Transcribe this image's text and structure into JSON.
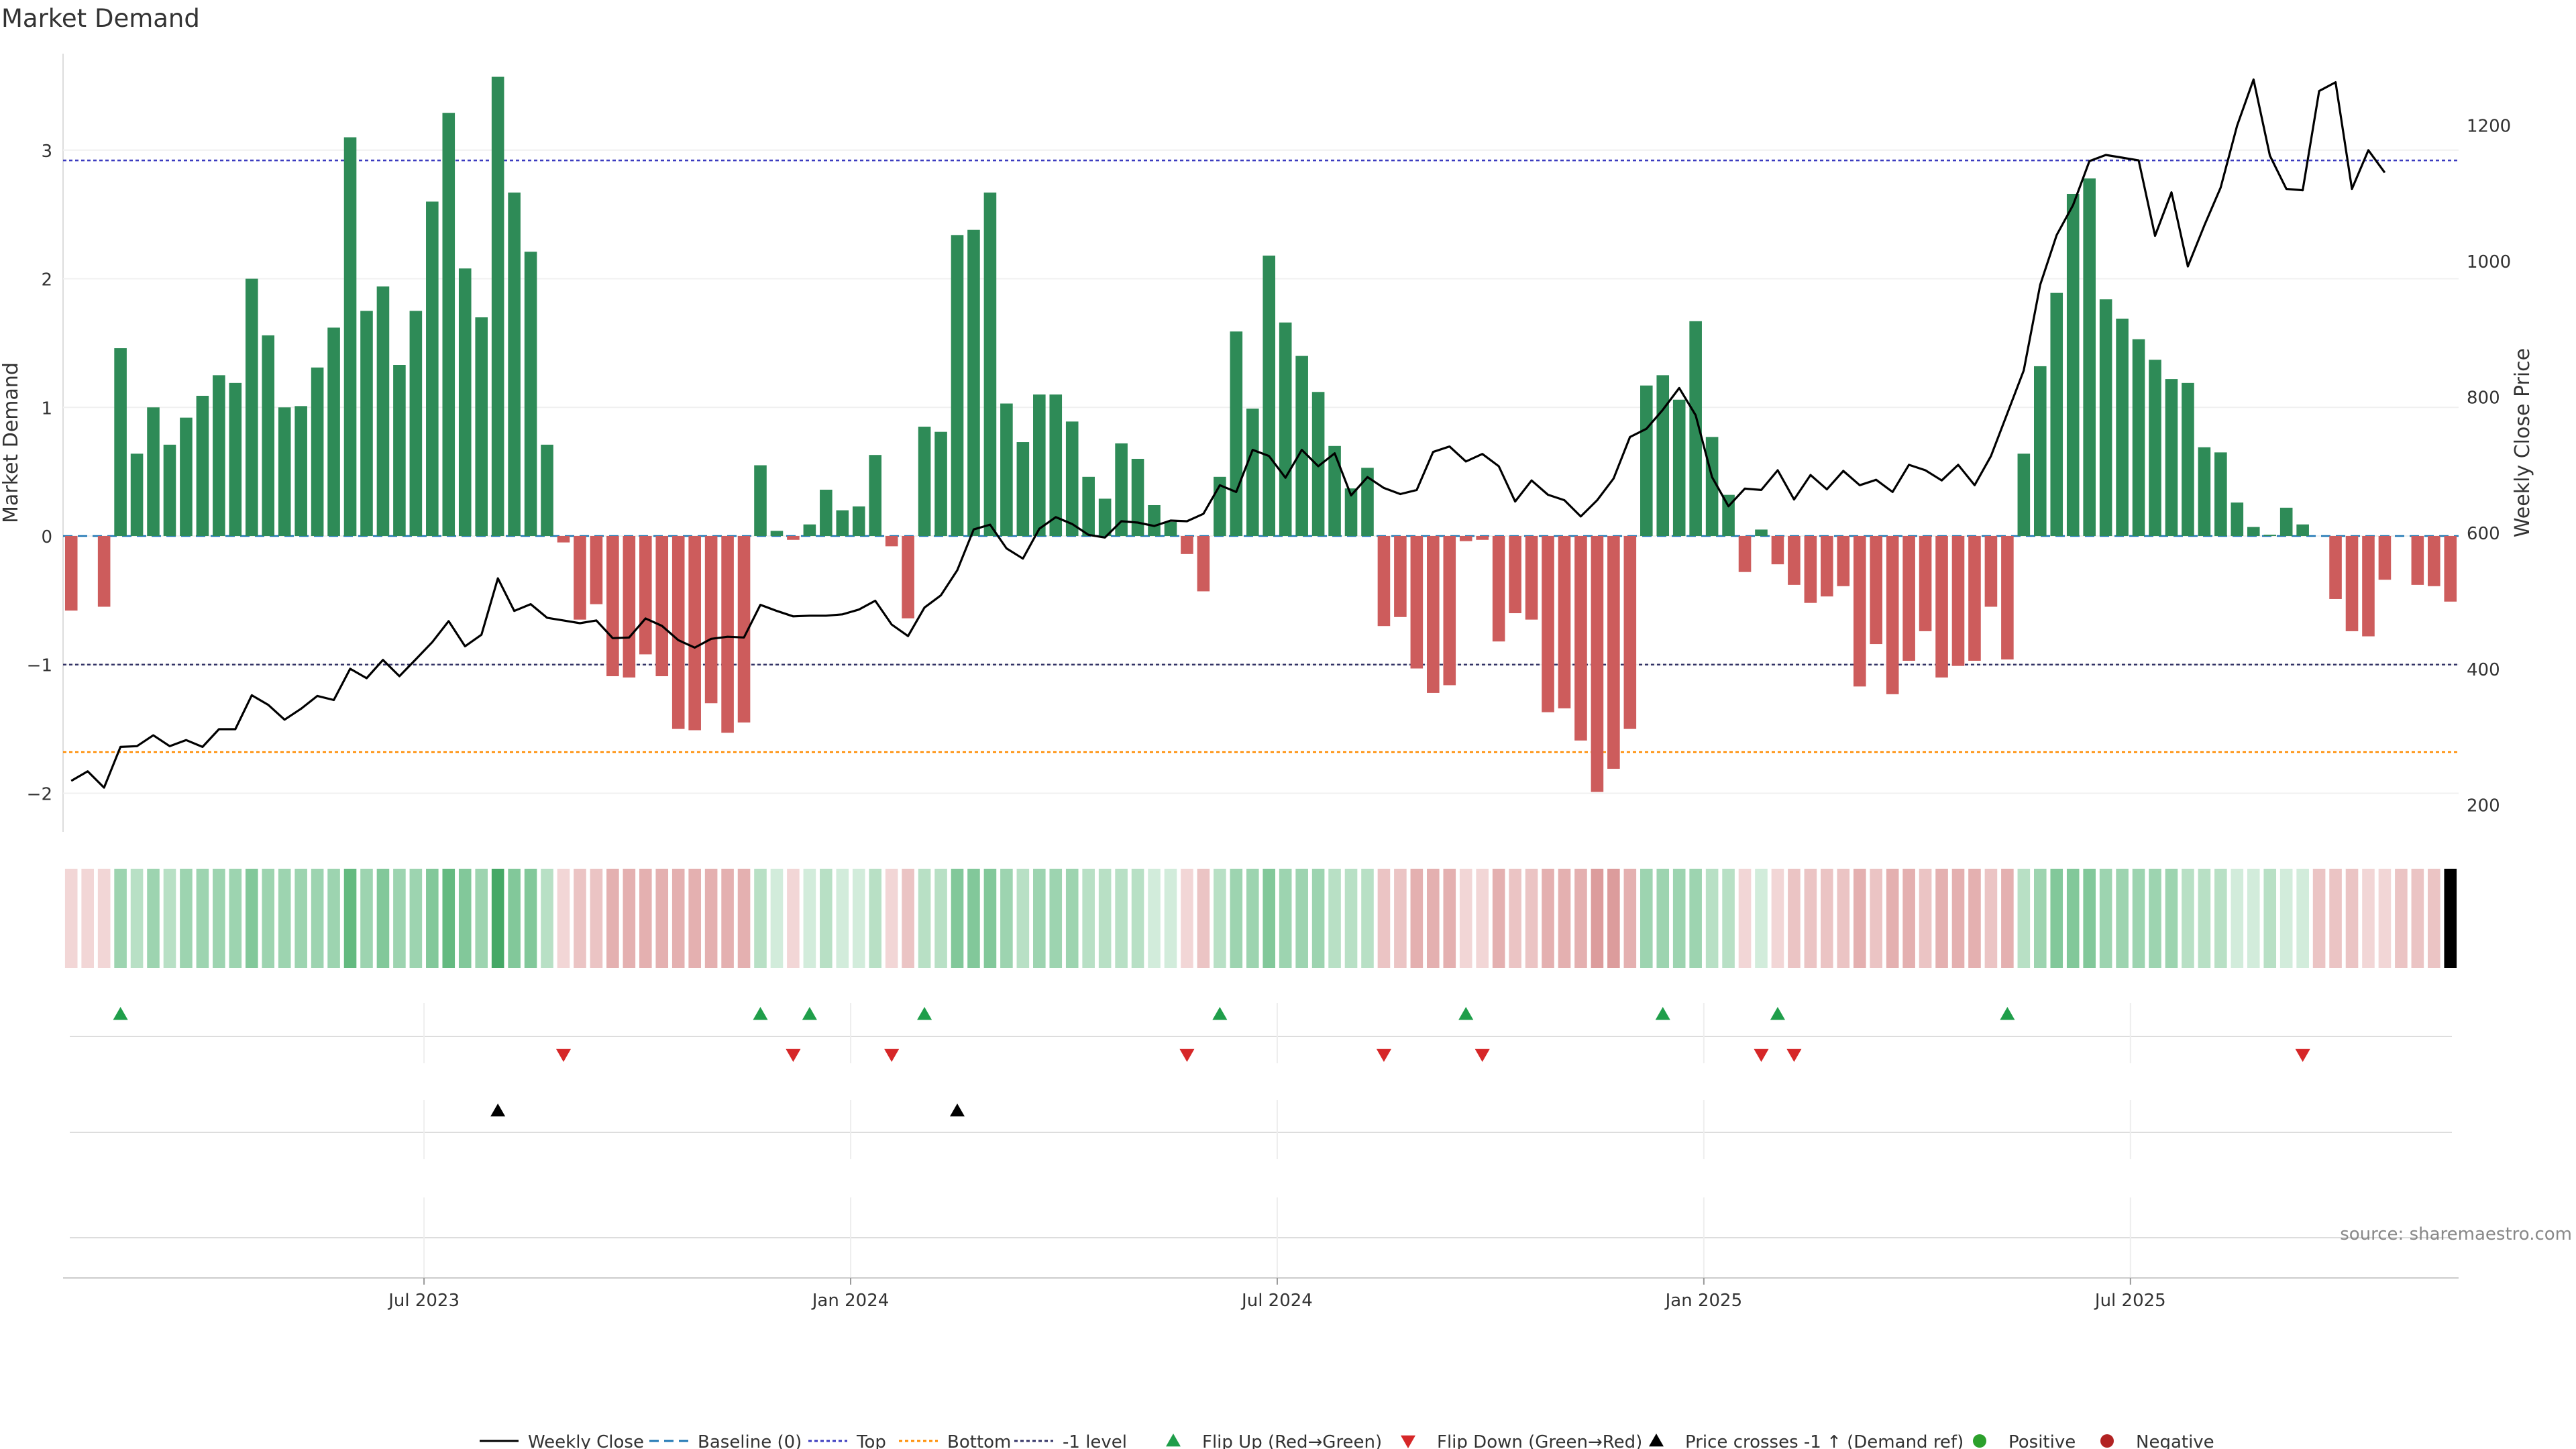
{
  "colors": {
    "positive_bar": "#2e8b57",
    "negative_bar": "#cd5c5c",
    "price_line": "#000000",
    "baseline": "#1f77b4",
    "top_line": "#3b3bbf",
    "bottom_line": "#ff8c00",
    "minus1_line": "#333366",
    "flip_up": "#1f9e4a",
    "flip_down": "#d62728",
    "price_cross": "#000000",
    "positive_dot": "#2ca02c",
    "negative_dot": "#b22222"
  },
  "chart_data": {
    "type": "bar",
    "title": "Market Demand",
    "ylabel": "Market Demand",
    "y2label": "Weekly Close Price",
    "ylim": [
      -2.3,
      3.75
    ],
    "y2lim": [
      160,
      1305
    ],
    "yticks": [
      "3",
      "2",
      "1",
      "0",
      "−1",
      "−2"
    ],
    "yticks_values": [
      3,
      2,
      1,
      0,
      -1,
      -2
    ],
    "y2ticks": [
      "1200",
      "1000",
      "800",
      "600",
      "400",
      "200"
    ],
    "y2ticks_values": [
      1200,
      1000,
      800,
      600,
      400,
      200
    ],
    "xticks": [
      "Jul 2023",
      "Jan 2024",
      "Jul 2024",
      "Jan 2025",
      "Jul 2025"
    ],
    "xticks_week_index": [
      22,
      48,
      74,
      100,
      126
    ],
    "levels": {
      "top": 2.92,
      "bottom": -1.68,
      "minus1": -1.0,
      "baseline": 0
    },
    "demand": [
      -0.58,
      0,
      -0.55,
      1.46,
      0.64,
      1.0,
      0.71,
      0.92,
      1.09,
      1.25,
      1.19,
      2.0,
      1.56,
      1.0,
      1.01,
      1.31,
      1.62,
      3.1,
      1.75,
      1.94,
      1.33,
      1.75,
      2.6,
      3.29,
      2.08,
      1.7,
      3.57,
      2.67,
      2.21,
      0.71,
      -0.05,
      -0.65,
      -0.53,
      -1.09,
      -1.1,
      -0.92,
      -1.09,
      -1.5,
      -1.51,
      -1.3,
      -1.53,
      -1.45,
      0.55,
      0.04,
      -0.03,
      0.09,
      0.36,
      0.2,
      0.23,
      0.63,
      -0.08,
      -0.64,
      0.85,
      0.81,
      2.34,
      2.38,
      2.67,
      1.03,
      0.73,
      1.1,
      1.1,
      0.89,
      0.46,
      0.29,
      0.72,
      0.6,
      0.24,
      0.11,
      -0.14,
      -0.43,
      0.46,
      1.59,
      0.99,
      2.18,
      1.66,
      1.4,
      1.12,
      0.7,
      0.37,
      0.53,
      -0.7,
      -0.63,
      -1.03,
      -1.22,
      -1.16,
      -0.04,
      -0.03,
      -0.82,
      -0.6,
      -0.65,
      -1.37,
      -1.34,
      -1.59,
      -1.99,
      -1.81,
      -1.5,
      1.17,
      1.25,
      1.06,
      1.67,
      0.77,
      0.32,
      -0.28,
      0.05,
      -0.22,
      -0.38,
      -0.52,
      -0.47,
      -0.39,
      -1.17,
      -0.84,
      -1.23,
      -0.97,
      -0.74,
      -1.1,
      -1.01,
      -0.97,
      -0.55,
      -0.96,
      0.64,
      1.32,
      1.89,
      2.66,
      2.78,
      1.84,
      1.69,
      1.53,
      1.37,
      1.22,
      1.19,
      0.69,
      0.65,
      0.26,
      0.07,
      0.01,
      0.22,
      0.09,
      0,
      -0.49,
      -0.74,
      -0.78,
      -0.34,
      0,
      -0.38,
      -0.39,
      -0.51
    ],
    "price": [
      235,
      249,
      225,
      285,
      286,
      302,
      286,
      295,
      285,
      311,
      311,
      361,
      347,
      325,
      341,
      360,
      354,
      400,
      386,
      413,
      389,
      414,
      439,
      470,
      433,
      450,
      533,
      485,
      495,
      475,
      471,
      467,
      471,
      445,
      446,
      474,
      463,
      442,
      431,
      444,
      447,
      446,
      494,
      485,
      477,
      478,
      478,
      480,
      487,
      500,
      465,
      448,
      490,
      508,
      545,
      605,
      612,
      577,
      562,
      606,
      623,
      613,
      597,
      593,
      617,
      615,
      610,
      618,
      617,
      628,
      670,
      660,
      722,
      713,
      681,
      722,
      698,
      717,
      655,
      682,
      666,
      657,
      663,
      719,
      727,
      705,
      716,
      698,
      646,
      677,
      656,
      648,
      624,
      648,
      680,
      741,
      753,
      781,
      813,
      773,
      682,
      639,
      665,
      663,
      692,
      649,
      685,
      664,
      691,
      670,
      678,
      660,
      700,
      692,
      677,
      700,
      670,
      713,
      776,
      839,
      965,
      1038,
      1082,
      1147,
      1156,
      1152,
      1148,
      1037,
      1101,
      992,
      1052,
      1108,
      1199,
      1267,
      1155,
      1106,
      1104,
      1250,
      1263,
      1106,
      1163,
      1130
    ],
    "heat_levels": [
      1,
      1,
      1,
      3,
      2,
      3,
      2,
      3,
      3,
      3,
      3,
      4,
      3,
      3,
      3,
      3,
      3,
      5,
      3,
      4,
      3,
      3,
      4,
      5,
      4,
      3,
      6,
      4,
      4,
      2,
      1,
      2,
      2,
      3,
      3,
      3,
      3,
      3,
      3,
      3,
      3,
      3,
      2,
      1,
      1,
      1,
      2,
      1,
      1,
      2,
      1,
      2,
      2,
      2,
      4,
      4,
      4,
      3,
      2,
      3,
      3,
      3,
      2,
      2,
      2,
      2,
      1,
      1,
      1,
      2,
      2,
      3,
      3,
      4,
      3,
      3,
      3,
      2,
      2,
      2,
      2,
      2,
      3,
      3,
      3,
      1,
      1,
      3,
      2,
      2,
      3,
      3,
      3,
      4,
      4,
      3,
      3,
      3,
      3,
      3,
      2,
      2,
      1,
      1,
      1,
      2,
      2,
      2,
      2,
      3,
      2,
      3,
      3,
      2,
      3,
      3,
      3,
      2,
      3,
      2,
      3,
      4,
      4,
      4,
      3,
      3,
      3,
      3,
      3,
      2,
      2,
      2,
      1,
      1,
      2,
      1,
      1,
      2,
      2,
      2,
      1,
      1,
      2,
      2,
      2
    ],
    "flip_up_weeks": [
      3,
      42,
      45,
      52,
      70,
      85,
      97,
      104,
      118
    ],
    "flip_down_weeks": [
      30,
      44,
      50,
      68,
      80,
      86,
      103,
      105,
      136
    ],
    "price_cross_weeks": [
      26,
      54
    ],
    "legend": [
      "Weekly Close",
      "Baseline (0)",
      "Top",
      "Bottom",
      "-1 level",
      "Flip Up (Red→Green)",
      "Flip Down (Green→Red)",
      "Price crosses -1 ↑ (Demand ref)",
      "Positive",
      "Negative"
    ],
    "source": "source: sharemaestro.com"
  }
}
